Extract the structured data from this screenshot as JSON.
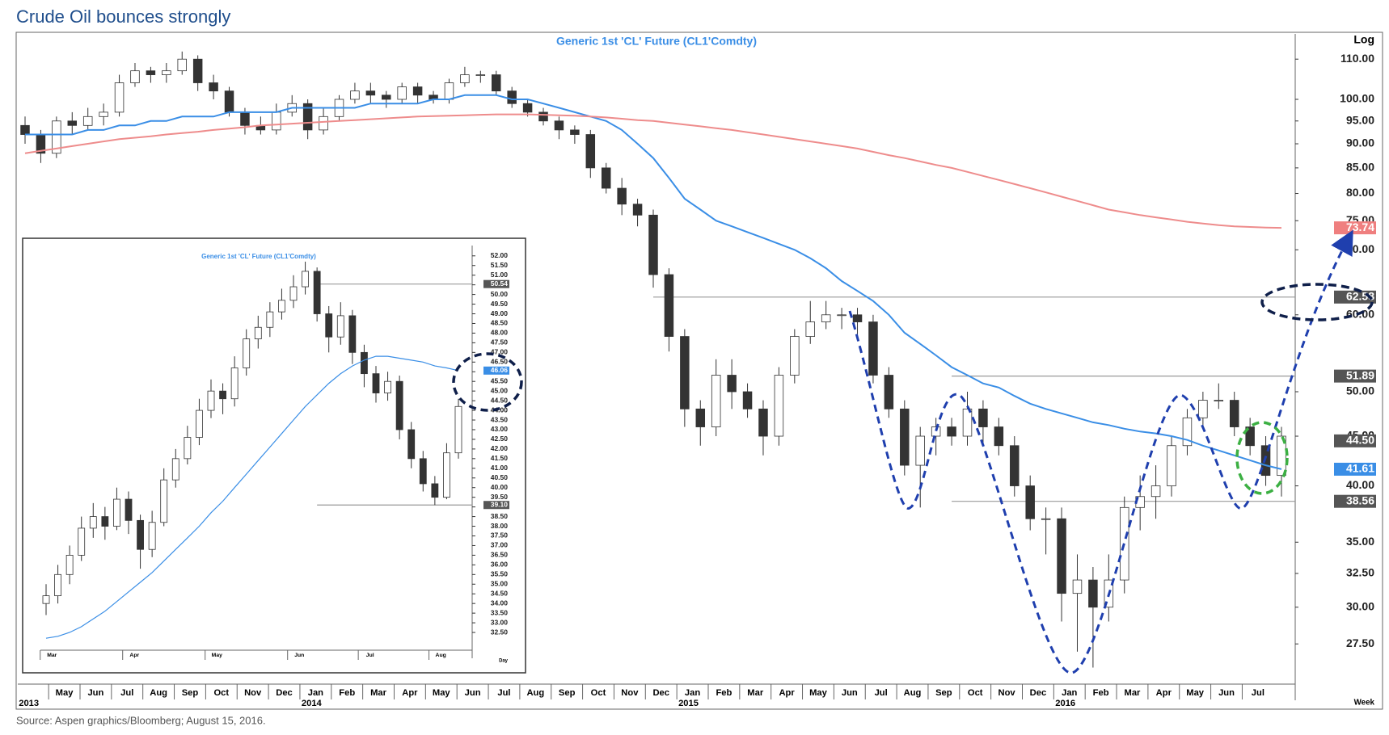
{
  "title": "Crude Oil bounces strongly",
  "source": "Source: Aspen graphics/Bloomberg; August 15, 2016.",
  "chart_data": [
    {
      "type": "candlestick",
      "title": "Generic 1st 'CL' Future (CL1'Comdty)",
      "scale_label": "Log",
      "x_unit": "Week",
      "log_scale": true,
      "categories": [
        null,
        null,
        "May",
        null,
        "Jun",
        null,
        "Jul",
        null,
        "Aug",
        null,
        "Sep",
        null,
        "Oct",
        null,
        "Nov",
        null,
        "Dec",
        null,
        "Jan",
        null,
        "Feb",
        null,
        "Mar",
        null,
        "Apr",
        null,
        "May",
        null,
        "Jun",
        null,
        "Jul",
        null,
        "Aug",
        null,
        "Sep",
        null,
        "Oct",
        null,
        "Nov",
        null,
        "Dec",
        null,
        "Jan",
        null,
        "Feb",
        null,
        "Mar",
        null,
        "Apr",
        null,
        "May",
        null,
        "Jun",
        null,
        "Jul",
        null,
        "Aug",
        null,
        "Sep",
        null,
        "Oct",
        null,
        "Nov",
        null,
        "Dec",
        null,
        "Jan",
        null,
        "Feb",
        null,
        "Mar",
        null,
        "Apr",
        null,
        "May",
        null,
        "Jun",
        null,
        "Jul",
        null,
        null
      ],
      "years": [
        "2013",
        null,
        null,
        null,
        null,
        null,
        null,
        null,
        null,
        null,
        null,
        null,
        null,
        null,
        null,
        null,
        null,
        null,
        "2014",
        null,
        null,
        null,
        null,
        null,
        null,
        null,
        null,
        null,
        null,
        null,
        null,
        null,
        null,
        null,
        null,
        null,
        null,
        null,
        null,
        null,
        null,
        null,
        "2015",
        null,
        null,
        null,
        null,
        null,
        null,
        null,
        null,
        null,
        null,
        null,
        null,
        null,
        null,
        null,
        null,
        null,
        null,
        null,
        null,
        null,
        null,
        null,
        "2016",
        null,
        null,
        null,
        null,
        null,
        null,
        null,
        null,
        null,
        null,
        null,
        null,
        null,
        null
      ],
      "open": [
        94,
        92,
        88,
        95,
        94,
        96,
        97,
        104,
        107,
        106,
        107,
        110,
        104,
        102,
        97,
        94,
        93,
        97,
        99,
        93,
        96,
        100,
        102,
        101,
        100,
        103,
        101,
        100,
        104,
        106,
        106,
        102,
        99,
        97,
        95,
        93,
        92,
        85,
        81,
        78,
        76,
        66,
        57,
        48,
        46,
        52,
        50,
        48,
        45,
        52,
        57,
        59,
        60,
        60,
        59,
        52,
        48,
        42,
        45,
        46,
        45,
        48,
        46,
        44,
        40,
        37,
        37,
        31,
        32,
        30,
        32,
        38,
        39,
        40,
        44,
        47,
        49,
        49,
        46,
        44,
        41
      ],
      "high": [
        96,
        93,
        96,
        97,
        98,
        99,
        106,
        109,
        108,
        109,
        112,
        111,
        106,
        103,
        98,
        96,
        99,
        101,
        100,
        98,
        101,
        104,
        104,
        102,
        104,
        104,
        102,
        105,
        108,
        107,
        107,
        103,
        100,
        98,
        96,
        94,
        93,
        86,
        83,
        79,
        77,
        67,
        58,
        49,
        54,
        54,
        51,
        49,
        53,
        58,
        62,
        62,
        61,
        61,
        60,
        53,
        49,
        46,
        47,
        47,
        50,
        49,
        47,
        45,
        41,
        38,
        38,
        34,
        33,
        34,
        39,
        41,
        42,
        45,
        48,
        50,
        51,
        50,
        47,
        45,
        46
      ],
      "low": [
        90,
        86,
        87,
        92,
        93,
        94,
        96,
        103,
        104,
        104,
        106,
        102,
        100,
        96,
        92,
        92,
        92,
        96,
        91,
        92,
        95,
        99,
        99,
        98,
        99,
        99,
        99,
        99,
        103,
        104,
        101,
        98,
        96,
        94,
        91,
        90,
        83,
        80,
        76,
        74,
        64,
        55,
        46,
        44,
        45,
        48,
        47,
        43,
        44,
        51,
        56,
        58,
        58,
        57,
        51,
        47,
        41,
        38,
        43,
        44,
        44,
        44,
        43,
        39,
        36,
        34,
        29,
        27,
        26,
        29,
        31,
        36,
        37,
        39,
        43,
        46,
        48,
        45,
        43,
        40,
        39
      ],
      "close": [
        92,
        88,
        95,
        94,
        96,
        97,
        104,
        107,
        106,
        107,
        110,
        104,
        102,
        97,
        94,
        93,
        97,
        99,
        93,
        96,
        100,
        102,
        101,
        100,
        103,
        101,
        100,
        104,
        106,
        106,
        102,
        99,
        97,
        95,
        93,
        92,
        85,
        81,
        78,
        76,
        66,
        57,
        48,
        46,
        52,
        50,
        48,
        45,
        52,
        57,
        59,
        60,
        60,
        59,
        52,
        48,
        42,
        45,
        46,
        45,
        48,
        46,
        44,
        40,
        37,
        37,
        31,
        32,
        30,
        32,
        38,
        39,
        40,
        44,
        47,
        49,
        49,
        46,
        44,
        41,
        45
      ],
      "up_color": "#ffffff",
      "down_color": "#333333",
      "lines": [
        {
          "color": "#3a8ee6",
          "values": [
            92,
            92,
            92,
            92,
            93,
            93,
            94,
            94,
            95,
            95,
            96,
            96,
            96,
            97,
            97,
            97,
            97,
            98,
            98,
            98,
            98,
            98,
            99,
            99,
            99,
            99,
            100,
            100,
            101,
            101,
            101,
            100,
            100,
            99,
            98,
            97,
            96,
            95,
            93,
            90,
            87,
            83,
            79,
            77,
            75,
            74,
            73,
            72,
            71,
            70,
            68.6,
            67,
            65,
            63.5,
            62,
            60,
            57.5,
            56,
            54.5,
            53,
            52,
            51,
            50.5,
            49.5,
            48.6,
            48,
            47.5,
            47,
            46.5,
            46.2,
            45.8,
            45.5,
            45.3,
            45,
            44.6,
            44,
            43.5,
            43,
            42.5,
            42,
            41.61
          ]
        },
        {
          "color": "#ee8c8c",
          "values": [
            88,
            88.5,
            89,
            89.5,
            90,
            90.5,
            91,
            91.3,
            91.6,
            92,
            92.3,
            92.6,
            93,
            93.3,
            93.6,
            94,
            94.2,
            94.4,
            94.6,
            94.8,
            95,
            95.2,
            95.4,
            95.6,
            95.8,
            96,
            96.1,
            96.2,
            96.3,
            96.4,
            96.5,
            96.5,
            96.5,
            96.4,
            96.3,
            96.2,
            96,
            95.8,
            95.5,
            95.2,
            95,
            94.6,
            94.2,
            93.8,
            93.4,
            93,
            92.5,
            92,
            91.5,
            91,
            90.5,
            90,
            89.5,
            89,
            88.3,
            87.6,
            87,
            86.3,
            85.6,
            85,
            84.2,
            83.4,
            82.6,
            81.8,
            81,
            80.2,
            79.4,
            78.6,
            77.8,
            77,
            76.5,
            76,
            75.6,
            75.2,
            74.8,
            74.5,
            74.2,
            74,
            73.9,
            73.8,
            73.74
          ]
        }
      ],
      "levels": [
        {
          "value": 73.74,
          "label": "73.74",
          "color": "#ef7f7f"
        },
        {
          "value": 62.58,
          "label": "62.58",
          "color": "#555555"
        },
        {
          "value": 51.89,
          "label": "51.89",
          "color": "#555555"
        },
        {
          "value": 44.5,
          "label": "44.50",
          "color": "#555555"
        },
        {
          "value": 41.61,
          "label": "41.61",
          "color": "#3a8ee6"
        },
        {
          "value": 38.56,
          "label": "38.56",
          "color": "#555555"
        }
      ],
      "ylim": [
        25,
        115
      ],
      "yticks": [
        {
          "value": 27.5,
          "label": "27.50"
        },
        {
          "value": 30,
          "label": "30.00"
        },
        {
          "value": 32.5,
          "label": "32.50"
        },
        {
          "value": 35,
          "label": "35.00"
        },
        {
          "value": 40,
          "label": "40.00"
        },
        {
          "value": 45,
          "label": "45.00"
        },
        {
          "value": 50,
          "label": "50.00"
        },
        {
          "value": 60,
          "label": "60.00"
        },
        {
          "value": 70,
          "label": "70.00"
        },
        {
          "value": 75,
          "label": "75.00"
        },
        {
          "value": 80,
          "label": "80.00"
        },
        {
          "value": 85,
          "label": "85.00"
        },
        {
          "value": 90,
          "label": "90.00"
        },
        {
          "value": 95,
          "label": "95.00"
        },
        {
          "value": 100,
          "label": "100.00"
        },
        {
          "value": 110,
          "label": "110.00"
        }
      ]
    },
    {
      "type": "candlestick",
      "title": "Generic 1st 'CL' Future (CL1'Comdty)",
      "x_unit": "Day",
      "log_scale": false,
      "categories": [
        "Mar",
        null,
        null,
        null,
        null,
        null,
        null,
        "Apr",
        null,
        null,
        null,
        null,
        null,
        null,
        "May",
        null,
        null,
        null,
        null,
        null,
        null,
        "Jun",
        null,
        null,
        null,
        null,
        null,
        "Jul",
        null,
        null,
        null,
        null,
        null,
        "Aug",
        null,
        null
      ],
      "open": [
        34.0,
        34.4,
        35.5,
        36.5,
        37.9,
        38.5,
        38.0,
        39.4,
        38.3,
        36.8,
        38.2,
        40.4,
        41.5,
        42.6,
        44.0,
        45.0,
        44.6,
        46.2,
        47.7,
        48.3,
        49.1,
        49.7,
        50.4,
        51.2,
        49.0,
        47.8,
        48.9,
        47.0,
        45.9,
        44.9,
        45.5,
        43.0,
        41.5,
        40.2,
        39.5,
        41.8
      ],
      "high": [
        35.0,
        36.0,
        37.0,
        38.5,
        39.2,
        39.0,
        40.0,
        39.8,
        38.6,
        38.8,
        41.0,
        42.0,
        43.2,
        44.6,
        45.6,
        45.4,
        46.8,
        48.2,
        48.9,
        49.6,
        50.3,
        51.0,
        51.7,
        51.4,
        49.4,
        49.6,
        49.2,
        47.4,
        46.3,
        46.0,
        45.8,
        43.4,
        41.9,
        40.6,
        42.3,
        44.6
      ],
      "low": [
        33.4,
        34.0,
        35.0,
        36.2,
        37.4,
        37.3,
        37.8,
        37.6,
        35.8,
        36.4,
        38.0,
        40.0,
        41.2,
        42.2,
        43.6,
        43.8,
        44.2,
        45.8,
        47.2,
        47.8,
        48.7,
        49.3,
        50.0,
        48.6,
        47.0,
        47.4,
        46.4,
        45.2,
        44.4,
        44.5,
        42.5,
        41.0,
        39.8,
        39.1,
        39.4,
        41.5
      ],
      "close": [
        34.4,
        35.5,
        36.5,
        37.9,
        38.5,
        38.0,
        39.4,
        38.3,
        36.8,
        38.2,
        40.4,
        41.5,
        42.6,
        44.0,
        45.0,
        44.6,
        46.2,
        47.7,
        48.3,
        49.1,
        49.7,
        50.4,
        51.2,
        49.0,
        47.8,
        48.9,
        47.0,
        45.9,
        44.9,
        45.5,
        43.0,
        41.5,
        40.2,
        39.5,
        41.8,
        44.2
      ],
      "up_color": "#ffffff",
      "down_color": "#333333",
      "lines": [
        {
          "color": "#3a8ee6",
          "values": [
            32.2,
            32.3,
            32.5,
            32.8,
            33.2,
            33.6,
            34.1,
            34.6,
            35.1,
            35.6,
            36.2,
            36.8,
            37.4,
            38.0,
            38.7,
            39.3,
            40.0,
            40.7,
            41.4,
            42.1,
            42.8,
            43.5,
            44.2,
            44.8,
            45.4,
            45.9,
            46.3,
            46.6,
            46.8,
            46.8,
            46.7,
            46.6,
            46.5,
            46.3,
            46.2,
            46.06
          ]
        }
      ],
      "levels": [
        {
          "value": 50.54,
          "label": "50.54",
          "color": "#555555"
        },
        {
          "value": 46.06,
          "label": "46.06",
          "color": "#3a8ee6"
        },
        {
          "value": 39.1,
          "label": "39.10",
          "color": "#555555"
        }
      ],
      "ylim": [
        32,
        52.2
      ],
      "yticks": [
        {
          "value": 32.5,
          "label": "32.50"
        },
        {
          "value": 33,
          "label": "33.00"
        },
        {
          "value": 33.5,
          "label": "33.50"
        },
        {
          "value": 34,
          "label": "34.00"
        },
        {
          "value": 34.5,
          "label": "34.50"
        },
        {
          "value": 35,
          "label": "35.00"
        },
        {
          "value": 35.5,
          "label": "35.50"
        },
        {
          "value": 36,
          "label": "36.00"
        },
        {
          "value": 36.5,
          "label": "36.50"
        },
        {
          "value": 37,
          "label": "37.00"
        },
        {
          "value": 37.5,
          "label": "37.50"
        },
        {
          "value": 38,
          "label": "38.00"
        },
        {
          "value": 38.5,
          "label": "38.50"
        },
        {
          "value": 39,
          "label": "39.00"
        },
        {
          "value": 39.5,
          "label": "39.50"
        },
        {
          "value": 40,
          "label": "40.00"
        },
        {
          "value": 40.5,
          "label": "40.50"
        },
        {
          "value": 41,
          "label": "41.00"
        },
        {
          "value": 41.5,
          "label": "41.50"
        },
        {
          "value": 42,
          "label": "42.00"
        },
        {
          "value": 42.5,
          "label": "42.50"
        },
        {
          "value": 43,
          "label": "43.00"
        },
        {
          "value": 43.5,
          "label": "43.50"
        },
        {
          "value": 44,
          "label": "44.00"
        },
        {
          "value": 44.5,
          "label": "44.50"
        },
        {
          "value": 45,
          "label": "45.00"
        },
        {
          "value": 45.5,
          "label": "45.50"
        },
        {
          "value": 46,
          "label": "46.00"
        },
        {
          "value": 46.5,
          "label": "46.50"
        },
        {
          "value": 47,
          "label": "47.00"
        },
        {
          "value": 47.5,
          "label": "47.50"
        },
        {
          "value": 48,
          "label": "48.00"
        },
        {
          "value": 48.5,
          "label": "48.50"
        },
        {
          "value": 49,
          "label": "49.00"
        },
        {
          "value": 49.5,
          "label": "49.50"
        },
        {
          "value": 50,
          "label": "50.00"
        },
        {
          "value": 50.5,
          "label": "50.50"
        },
        {
          "value": 51,
          "label": "51.00"
        },
        {
          "value": 51.5,
          "label": "51.50"
        },
        {
          "value": 52,
          "label": "52.00"
        }
      ]
    }
  ]
}
